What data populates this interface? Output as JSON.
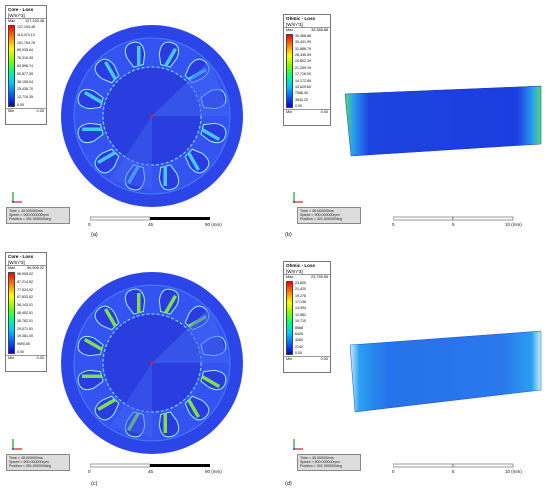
{
  "panels": [
    {
      "id": "a",
      "caption": "(a)",
      "legend": {
        "title": "Core - Loss",
        "units": "[W/m^3]",
        "max_label": "Max",
        "max": "127,193.48",
        "min_label": "Min",
        "min": "0.00",
        "ticks": [
          "127,193.48",
          "114,474.13",
          "101,754.78",
          "89,035.44",
          "76,316.09",
          "63,596.74",
          "50,877.39",
          "38,158.04",
          "25,438.70",
          "12,719.35",
          "0.00"
        ]
      },
      "info": [
        "Time  = 45.000000ms",
        "Speed = 900.000000rpm",
        "Position = 301.500000deg"
      ],
      "scale": {
        "labels": [
          "0",
          "45",
          "90 (mm)"
        ]
      }
    },
    {
      "id": "b",
      "caption": "(b)",
      "legend": {
        "title": "Ohmic - Loss",
        "units": "[W/m^3]",
        "max_label": "Max",
        "max": "39,368.88",
        "min_label": "Min",
        "min": "0.00",
        "ticks": [
          "39,368.88",
          "35,431.99",
          "31,888.79",
          "28,345.59",
          "24,802.39",
          "21,259.19",
          "17,716.00",
          "14,172.80",
          "10,629.60",
          "7086.40",
          "3543.20",
          "0.00"
        ]
      },
      "info": [
        "Time  = 45.000000ms",
        "Speed = 900.000000rpm",
        "Position = 301.500000deg"
      ],
      "scale": {
        "labels": [
          "0",
          "5",
          "10 (mm)"
        ]
      }
    },
    {
      "id": "c",
      "caption": "(c)",
      "legend": {
        "title": "Core - Loss",
        "units": "[W/m^3]",
        "max_label": "Max",
        "max": "96,905.02",
        "min_label": "Min",
        "min": "0.00",
        "ticks": [
          "96,905.02",
          "87,214.52",
          "77,524.02",
          "67,833.52",
          "58,143.01",
          "48,452.51",
          "38,762.01",
          "29,071.51",
          "19,381.00",
          "9690.50",
          "0.00"
        ]
      },
      "info": [
        "Time  = 45.000000ms",
        "Speed = 900.000000rpm",
        "Position = 301.500000deg"
      ],
      "scale": {
        "labels": [
          "0",
          "45",
          "90 (mm)"
        ]
      }
    },
    {
      "id": "d",
      "caption": "(d)",
      "legend": {
        "title": "Ohmic - Loss",
        "units": "[W/m^3]",
        "max_label": "Max",
        "max": "23,759.95",
        "min_label": "Min",
        "min": "0.00",
        "ticks": [
          "23,800",
          "21,420",
          "19,278",
          "17,136",
          "14,994",
          "12,852",
          "10,710",
          "8568",
          "6426",
          "4284",
          "2142",
          "0.00"
        ]
      },
      "info": [
        "Time  = 45.000000ms",
        "Speed = 900.000000rpm",
        "Position = 301.500000deg"
      ],
      "scale": {
        "labels": [
          "0",
          "5",
          "10 (mm)"
        ]
      }
    }
  ],
  "colors": {
    "field_low": "#1c2ee0",
    "field_mid": "#2f9cf0",
    "field_high": "#7fe04a",
    "legend_gradient": [
      "#ff0000",
      "#ff7f00",
      "#ffff00",
      "#7fff00",
      "#00ff7f",
      "#00c8ff",
      "#0060ff",
      "#0000d0"
    ]
  },
  "icons": [
    "axis-triad-icon",
    "scale-bar-icon"
  ]
}
